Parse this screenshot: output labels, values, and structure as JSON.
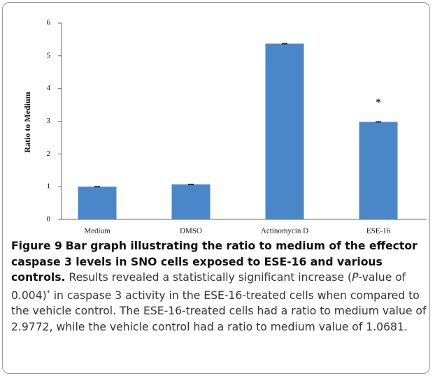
{
  "chart_data": {
    "type": "bar",
    "ylabel": "Ratio to Medium",
    "categories": [
      "Medium",
      "DMSO",
      "Actinomycin D",
      "ESE-16"
    ],
    "values": [
      1.0,
      1.07,
      5.37,
      2.98
    ],
    "errors": [
      0.01,
      0.01,
      0.01,
      0.01
    ],
    "color": "#4a87c9",
    "ylim": [
      0,
      6
    ],
    "yticks": [
      0,
      1,
      2,
      3,
      4,
      5,
      6
    ],
    "grid": false,
    "annotations": [
      {
        "text": "*",
        "category": 3,
        "y": 3.65
      }
    ]
  },
  "caption": {
    "label": "Figure 9",
    "title": "Bar graph illustrating the ratio to medium of the effector caspase 3 levels in SNO cells exposed to ESE-16 and various controls.",
    "parts": [
      "Results revealed a statistically significant increase (",
      "P",
      "-value of 0.004)",
      "*",
      " in caspase 3 activity in the ESE-16-treated cells when compared to the vehicle control. The ESE-16-treated cells had a ratio to medium value of 2.9772, while the vehicle control had a ratio to medium value of 1.0681."
    ]
  }
}
